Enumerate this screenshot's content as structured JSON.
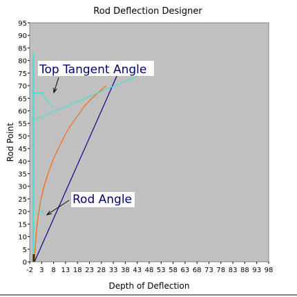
{
  "chart_data": {
    "type": "line",
    "title": "Rod Deflection Designer",
    "xlabel": "Depth of Deflection",
    "ylabel": "Rod Point",
    "xlim": [
      -2,
      98
    ],
    "ylim": [
      0,
      95
    ],
    "x_ticks": [
      -2,
      3,
      8,
      13,
      18,
      23,
      28,
      33,
      38,
      43,
      48,
      53,
      58,
      63,
      68,
      73,
      78,
      83,
      88,
      93,
      98
    ],
    "y_ticks": [
      0,
      5,
      10,
      15,
      20,
      25,
      30,
      35,
      40,
      45,
      50,
      55,
      60,
      65,
      70,
      75,
      80,
      85,
      90,
      95
    ],
    "grid": false,
    "background": "#c0c0c0",
    "series": [
      {
        "color": "#ff6600",
        "style": "solid",
        "x": [
          0,
          0.3,
          0.8,
          1.5,
          2.5,
          4,
          6,
          8,
          10,
          12.5,
          15,
          18,
          21,
          24,
          27,
          30
        ],
        "y": [
          0,
          6,
          12,
          18,
          24,
          30,
          36,
          41,
          45,
          50,
          54,
          58,
          62,
          65,
          67.5,
          70
        ]
      },
      {
        "color": "#00008b",
        "style": "solid",
        "x": [
          0,
          35
        ],
        "y": [
          0,
          75
        ]
      },
      {
        "color": "#40e0d0",
        "style": "solid",
        "x": [
          -1,
          46
        ],
        "y": [
          56,
          75
        ]
      },
      {
        "color": "#40e0d0",
        "style": "solid",
        "x": [
          -0.5,
          -0.5
        ],
        "y": [
          0,
          83
        ]
      },
      {
        "color": "#40e0d0",
        "style": "solid",
        "x": [
          -1,
          4
        ],
        "y": [
          67,
          67
        ]
      }
    ],
    "annotations": [
      {
        "text": "Top Tangent Angle",
        "x": -0.5,
        "y": 76
      },
      {
        "text": "Rod Angle",
        "x": 15,
        "y": 24
      }
    ]
  }
}
